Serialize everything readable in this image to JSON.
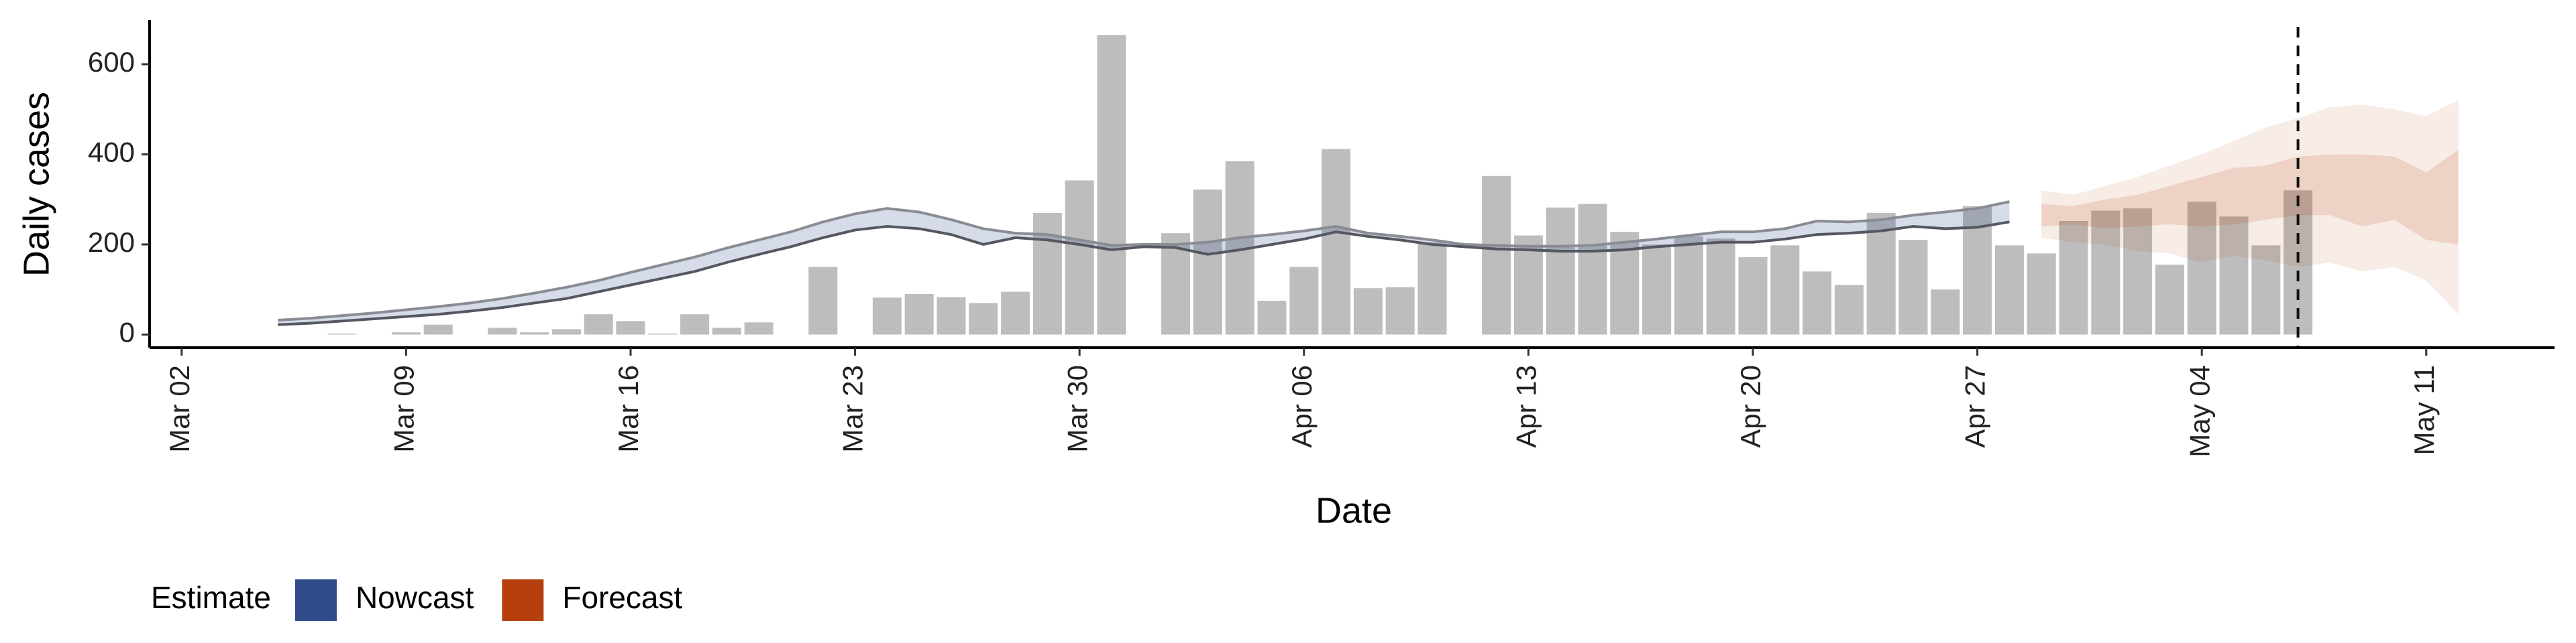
{
  "chart_data": {
    "type": "nowcast",
    "x_label": "Date",
    "y_label": "Daily cases",
    "legend_title": "Estimate",
    "xlim": [
      "Mar 01",
      "May 15"
    ],
    "xticks": [
      "Mar 02",
      "Mar 09",
      "Mar 16",
      "Mar 23",
      "Mar 30",
      "Apr 06",
      "Apr 13",
      "Apr 20",
      "Apr 27",
      "May 04",
      "May 11"
    ],
    "ylim": [
      -29,
      698
    ],
    "yticks": [
      0,
      200,
      400,
      600
    ],
    "reference_date": "May 07",
    "bars": {
      "color": "#bdbdbd",
      "x": [
        "Mar 07",
        "Mar 09",
        "Mar 10",
        "Mar 12",
        "Mar 13",
        "Mar 14",
        "Mar 15",
        "Mar 16",
        "Mar 17",
        "Mar 18",
        "Mar 19",
        "Mar 20",
        "Mar 22",
        "Mar 24",
        "Mar 25",
        "Mar 26",
        "Mar 27",
        "Mar 28",
        "Mar 29",
        "Mar 30",
        "Mar 31",
        "Apr 02",
        "Apr 03",
        "Apr 04",
        "Apr 05",
        "Apr 06",
        "Apr 07",
        "Apr 08",
        "Apr 09",
        "Apr 10",
        "Apr 12",
        "Apr 13",
        "Apr 14",
        "Apr 15",
        "Apr 16",
        "Apr 17",
        "Apr 18",
        "Apr 19",
        "Apr 20",
        "Apr 21",
        "Apr 22",
        "Apr 23",
        "Apr 24",
        "Apr 25",
        "Apr 26",
        "Apr 27",
        "Apr 28",
        "Apr 29",
        "Apr 30",
        "May 01",
        "May 02",
        "May 03",
        "May 04",
        "May 05",
        "May 06",
        "May 07"
      ],
      "values": [
        2,
        5,
        22,
        15,
        5,
        12,
        45,
        30,
        2,
        45,
        15,
        27,
        150,
        82,
        90,
        83,
        70,
        95,
        270,
        342,
        665,
        225,
        322,
        385,
        75,
        150,
        412,
        103,
        105,
        205,
        352,
        220,
        282,
        290,
        228,
        200,
        218,
        213,
        172,
        198,
        140,
        110,
        270,
        210,
        100,
        285,
        198,
        180,
        252,
        275,
        280,
        155,
        295,
        262,
        198,
        320
      ]
    },
    "series": [
      {
        "name": "Nowcast",
        "color": "#2f4b8a",
        "x": [
          "Mar 05",
          "Mar 06",
          "Mar 07",
          "Mar 08",
          "Mar 09",
          "Mar 10",
          "Mar 11",
          "Mar 12",
          "Mar 13",
          "Mar 14",
          "Mar 15",
          "Mar 16",
          "Mar 17",
          "Mar 18",
          "Mar 19",
          "Mar 20",
          "Mar 21",
          "Mar 22",
          "Mar 23",
          "Mar 24",
          "Mar 25",
          "Mar 26",
          "Mar 27",
          "Mar 28",
          "Mar 29",
          "Mar 30",
          "Mar 31",
          "Apr 01",
          "Apr 02",
          "Apr 03",
          "Apr 04",
          "Apr 05",
          "Apr 06",
          "Apr 07",
          "Apr 08",
          "Apr 09",
          "Apr 10",
          "Apr 11",
          "Apr 12",
          "Apr 13",
          "Apr 14",
          "Apr 15",
          "Apr 16",
          "Apr 17",
          "Apr 18",
          "Apr 19",
          "Apr 20",
          "Apr 21",
          "Apr 22",
          "Apr 23",
          "Apr 24",
          "Apr 25",
          "Apr 26",
          "Apr 27",
          "Apr 28"
        ],
        "lower": [
          22,
          25,
          30,
          35,
          40,
          45,
          52,
          60,
          70,
          80,
          95,
          110,
          125,
          140,
          160,
          178,
          195,
          215,
          232,
          240,
          235,
          222,
          200,
          215,
          210,
          200,
          188,
          195,
          193,
          178,
          188,
          200,
          212,
          228,
          218,
          210,
          200,
          195,
          190,
          188,
          185,
          185,
          188,
          195,
          200,
          205,
          205,
          212,
          222,
          225,
          230,
          240,
          235,
          238,
          250
        ],
        "upper": [
          32,
          36,
          42,
          48,
          55,
          62,
          70,
          80,
          92,
          105,
          120,
          138,
          155,
          172,
          192,
          210,
          228,
          250,
          268,
          280,
          272,
          255,
          235,
          225,
          222,
          210,
          198,
          200,
          200,
          205,
          215,
          222,
          230,
          240,
          225,
          218,
          210,
          200,
          198,
          196,
          196,
          198,
          205,
          212,
          220,
          228,
          228,
          235,
          252,
          250,
          255,
          265,
          272,
          280,
          295
        ]
      },
      {
        "name": "Forecast",
        "color": "#b5400e",
        "x": [
          "Apr 29",
          "Apr 30",
          "May 01",
          "May 02",
          "May 03",
          "May 04",
          "May 05",
          "May 06",
          "May 07",
          "May 08",
          "May 09",
          "May 10",
          "May 11",
          "May 12"
        ],
        "lower": [
          215,
          205,
          200,
          185,
          180,
          160,
          175,
          165,
          150,
          160,
          140,
          150,
          120,
          45
        ],
        "upper": [
          320,
          310,
          330,
          350,
          375,
          400,
          430,
          460,
          480,
          505,
          510,
          500,
          485,
          520
        ],
        "inner_lower": [
          240,
          245,
          235,
          240,
          245,
          240,
          245,
          255,
          265,
          265,
          240,
          255,
          210,
          200
        ],
        "inner_upper": [
          290,
          285,
          300,
          310,
          330,
          350,
          370,
          375,
          395,
          400,
          400,
          395,
          360,
          410
        ]
      }
    ]
  }
}
